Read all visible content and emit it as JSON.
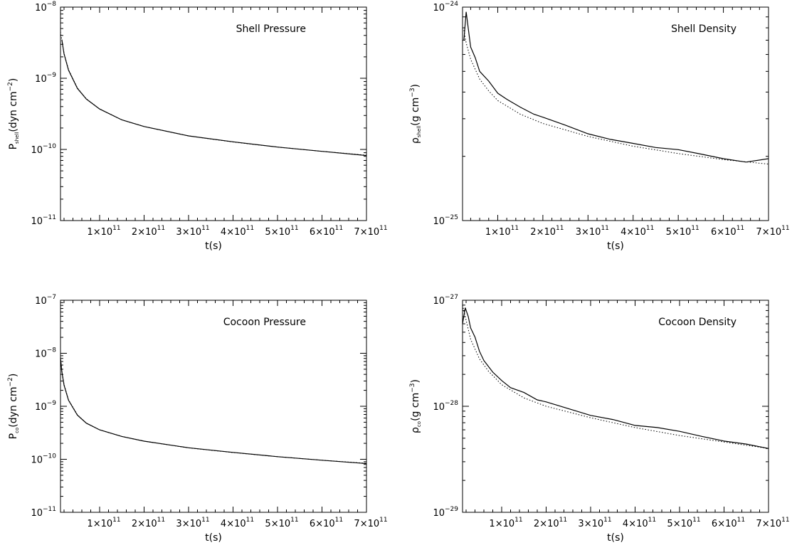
{
  "chart_data": [
    {
      "type": "line",
      "annotation": "Shell Pressure",
      "xlabel": "t(s)",
      "ylabel": {
        "sym": "P",
        "sub": "shell",
        "unit": "(dyn cm",
        "sup": "−2",
        "close": ")"
      },
      "yscale": "log",
      "xlim": [
        12000000000.0,
        700000000000.0
      ],
      "ylim": [
        1e-11,
        1e-08
      ],
      "x_ticks": [
        {
          "m": "1",
          "e": "11",
          "v": 100000000000.0
        },
        {
          "m": "2",
          "e": "11",
          "v": 200000000000.0
        },
        {
          "m": "3",
          "e": "11",
          "v": 300000000000.0
        },
        {
          "m": "4",
          "e": "11",
          "v": 400000000000.0
        },
        {
          "m": "5",
          "e": "11",
          "v": 500000000000.0
        },
        {
          "m": "6",
          "e": "11",
          "v": 600000000000.0
        },
        {
          "m": "7",
          "e": "11",
          "v": 700000000000.0
        }
      ],
      "y_ticks": [
        {
          "b": "10",
          "e": "−8",
          "v": 1e-08
        },
        {
          "b": "10",
          "e": "−9",
          "v": 1e-09
        },
        {
          "b": "10",
          "e": "−10",
          "v": 1e-10
        },
        {
          "b": "10",
          "e": "−11",
          "v": 1e-11
        }
      ],
      "series": [
        {
          "style": "solid",
          "x": [
            15000000000.0,
            20000000000.0,
            30000000000.0,
            50000000000.0,
            70000000000.0,
            100000000000.0,
            150000000000.0,
            200000000000.0,
            300000000000.0,
            400000000000.0,
            500000000000.0,
            600000000000.0,
            700000000000.0
          ],
          "y": [
            3.5e-09,
            2.2e-09,
            1.3e-09,
            7.2e-10,
            5.1e-10,
            3.7e-10,
            2.6e-10,
            2.1e-10,
            1.55e-10,
            1.28e-10,
            1.08e-10,
            9.4e-11,
            8.2e-11
          ]
        },
        {
          "style": "dotted",
          "x": [
            12000000000.0,
            20000000000.0,
            30000000000.0,
            50000000000.0,
            70000000000.0,
            100000000000.0,
            150000000000.0,
            200000000000.0,
            300000000000.0,
            400000000000.0,
            500000000000.0,
            600000000000.0,
            700000000000.0
          ],
          "y": [
            4.5e-09,
            2.25e-09,
            1.32e-09,
            7.3e-10,
            5.15e-10,
            3.7e-10,
            2.6e-10,
            2.1e-10,
            1.55e-10,
            1.27e-10,
            1.08e-10,
            9.4e-11,
            8.3e-11
          ]
        }
      ]
    },
    {
      "type": "line",
      "annotation": "Shell Density",
      "xlabel": "t(s)",
      "ylabel": {
        "sym": "ρ",
        "sub": "shell",
        "unit": "(g cm",
        "sup": "−3",
        "close": ")"
      },
      "yscale": "log",
      "xlim": [
        22000000000.0,
        700000000000.0
      ],
      "ylim": [
        1e-25,
        1e-24
      ],
      "x_ticks": [
        {
          "m": "1",
          "e": "11",
          "v": 100000000000.0
        },
        {
          "m": "2",
          "e": "11",
          "v": 200000000000.0
        },
        {
          "m": "3",
          "e": "11",
          "v": 300000000000.0
        },
        {
          "m": "4",
          "e": "11",
          "v": 400000000000.0
        },
        {
          "m": "5",
          "e": "11",
          "v": 500000000000.0
        },
        {
          "m": "6",
          "e": "11",
          "v": 600000000000.0
        },
        {
          "m": "7",
          "e": "11",
          "v": 700000000000.0
        }
      ],
      "y_ticks": [
        {
          "b": "10",
          "e": "−24",
          "v": 1e-24
        },
        {
          "b": "10",
          "e": "−25",
          "v": 1e-25
        }
      ],
      "series": [
        {
          "style": "solid",
          "x": [
            25000000000.0,
            30000000000.0,
            40000000000.0,
            50000000000.0,
            60000000000.0,
            80000000000.0,
            100000000000.0,
            120000000000.0,
            150000000000.0,
            180000000000.0,
            200000000000.0,
            250000000000.0,
            300000000000.0,
            350000000000.0,
            400000000000.0,
            450000000000.0,
            500000000000.0,
            550000000000.0,
            600000000000.0,
            650000000000.0,
            700000000000.0
          ],
          "y": [
            7e-25,
            9.5e-25,
            6.5e-25,
            5.8e-25,
            5e-25,
            4.5e-25,
            3.95e-25,
            3.7e-25,
            3.4e-25,
            3.15e-25,
            3.05e-25,
            2.8e-25,
            2.55e-25,
            2.4e-25,
            2.3e-25,
            2.2e-25,
            2.15e-25,
            2.05e-25,
            1.95e-25,
            1.88e-25,
            1.95e-25
          ]
        },
        {
          "style": "dotted",
          "x": [
            25000000000.0,
            30000000000.0,
            40000000000.0,
            60000000000.0,
            80000000000.0,
            100000000000.0,
            150000000000.0,
            200000000000.0,
            300000000000.0,
            400000000000.0,
            500000000000.0,
            600000000000.0,
            700000000000.0
          ],
          "y": [
            7.8e-25,
            6.8e-25,
            5.7e-25,
            4.6e-25,
            4.05e-25,
            3.65e-25,
            3.15e-25,
            2.85e-25,
            2.48e-25,
            2.23e-25,
            2.06e-25,
            1.93e-25,
            1.84e-25
          ]
        }
      ]
    },
    {
      "type": "line",
      "annotation": "Cocoon Pressure",
      "xlabel": "t(s)",
      "ylabel": {
        "sym": "P",
        "sub": "co",
        "unit": "(dyn cm",
        "sup": "−2",
        "close": ")"
      },
      "yscale": "log",
      "xlim": [
        12000000000.0,
        700000000000.0
      ],
      "ylim": [
        1e-11,
        1e-07
      ],
      "x_ticks": [
        {
          "m": "1",
          "e": "11",
          "v": 100000000000.0
        },
        {
          "m": "2",
          "e": "11",
          "v": 200000000000.0
        },
        {
          "m": "3",
          "e": "11",
          "v": 300000000000.0
        },
        {
          "m": "4",
          "e": "11",
          "v": 400000000000.0
        },
        {
          "m": "5",
          "e": "11",
          "v": 500000000000.0
        },
        {
          "m": "6",
          "e": "11",
          "v": 600000000000.0
        },
        {
          "m": "7",
          "e": "11",
          "v": 700000000000.0
        }
      ],
      "y_ticks": [
        {
          "b": "10",
          "e": "−7",
          "v": 1e-07
        },
        {
          "b": "10",
          "e": "−8",
          "v": 1e-08
        },
        {
          "b": "10",
          "e": "−9",
          "v": 1e-09
        },
        {
          "b": "10",
          "e": "−10",
          "v": 1e-10
        },
        {
          "b": "10",
          "e": "−11",
          "v": 1e-11
        }
      ],
      "series": [
        {
          "style": "solid",
          "x": [
            12000000000.0,
            15000000000.0,
            20000000000.0,
            30000000000.0,
            50000000000.0,
            70000000000.0,
            100000000000.0,
            150000000000.0,
            200000000000.0,
            300000000000.0,
            400000000000.0,
            500000000000.0,
            600000000000.0,
            700000000000.0
          ],
          "y": [
            8e-09,
            4.5e-09,
            2.5e-09,
            1.3e-09,
            6.8e-10,
            4.8e-10,
            3.6e-10,
            2.7e-10,
            2.2e-10,
            1.65e-10,
            1.35e-10,
            1.12e-10,
            9.6e-11,
            8.3e-11
          ]
        },
        {
          "style": "dotted",
          "x": [
            12000000000.0,
            15000000000.0,
            20000000000.0,
            30000000000.0,
            50000000000.0,
            70000000000.0,
            100000000000.0,
            150000000000.0,
            200000000000.0,
            300000000000.0,
            400000000000.0,
            500000000000.0,
            600000000000.0,
            700000000000.0
          ],
          "y": [
            8.5e-09,
            4.7e-09,
            2.6e-09,
            1.32e-09,
            6.9e-10,
            4.8e-10,
            3.6e-10,
            2.7e-10,
            2.2e-10,
            1.64e-10,
            1.34e-10,
            1.12e-10,
            9.6e-11,
            8.4e-11
          ]
        }
      ]
    },
    {
      "type": "line",
      "annotation": "Cocoon Density",
      "xlabel": "t(s)",
      "ylabel": {
        "sym": "ρ",
        "sub": "co",
        "unit": "(g cm",
        "sup": "−3",
        "close": ")"
      },
      "yscale": "log",
      "xlim": [
        12000000000.0,
        700000000000.0
      ],
      "ylim": [
        1e-29,
        1e-27
      ],
      "x_ticks": [
        {
          "m": "1",
          "e": "11",
          "v": 100000000000.0
        },
        {
          "m": "2",
          "e": "11",
          "v": 200000000000.0
        },
        {
          "m": "3",
          "e": "11",
          "v": 300000000000.0
        },
        {
          "m": "4",
          "e": "11",
          "v": 400000000000.0
        },
        {
          "m": "5",
          "e": "11",
          "v": 500000000000.0
        },
        {
          "m": "6",
          "e": "11",
          "v": 600000000000.0
        },
        {
          "m": "7",
          "e": "11",
          "v": 700000000000.0
        }
      ],
      "y_ticks": [
        {
          "b": "10",
          "e": "−27",
          "v": 1e-27
        },
        {
          "b": "10",
          "e": "−28",
          "v": 1e-28
        },
        {
          "b": "10",
          "e": "−29",
          "v": 1e-29
        }
      ],
      "series": [
        {
          "style": "solid",
          "x": [
            12000000000.0,
            18000000000.0,
            25000000000.0,
            30000000000.0,
            40000000000.0,
            50000000000.0,
            60000000000.0,
            80000000000.0,
            100000000000.0,
            120000000000.0,
            150000000000.0,
            180000000000.0,
            200000000000.0,
            250000000000.0,
            300000000000.0,
            350000000000.0,
            400000000000.0,
            450000000000.0,
            500000000000.0,
            550000000000.0,
            600000000000.0,
            650000000000.0,
            700000000000.0
          ],
          "y": [
            6e-28,
            8.5e-28,
            7e-28,
            5.5e-28,
            4.5e-28,
            3.3e-28,
            2.7e-28,
            2.1e-28,
            1.75e-28,
            1.5e-28,
            1.35e-28,
            1.15e-28,
            1.1e-28,
            9.5e-29,
            8.2e-29,
            7.5e-29,
            6.6e-29,
            6.3e-29,
            5.8e-29,
            5.2e-29,
            4.7e-29,
            4.4e-29,
            4e-29
          ]
        },
        {
          "style": "dotted",
          "x": [
            12000000000.0,
            20000000000.0,
            30000000000.0,
            50000000000.0,
            70000000000.0,
            100000000000.0,
            150000000000.0,
            200000000000.0,
            300000000000.0,
            400000000000.0,
            500000000000.0,
            600000000000.0,
            700000000000.0
          ],
          "y": [
            9e-28,
            6.5e-28,
            4.3e-28,
            2.8e-28,
            2.15e-28,
            1.6e-28,
            1.2e-28,
            1e-28,
            7.8e-29,
            6.3e-29,
            5.3e-29,
            4.6e-29,
            4e-29
          ]
        }
      ]
    }
  ]
}
